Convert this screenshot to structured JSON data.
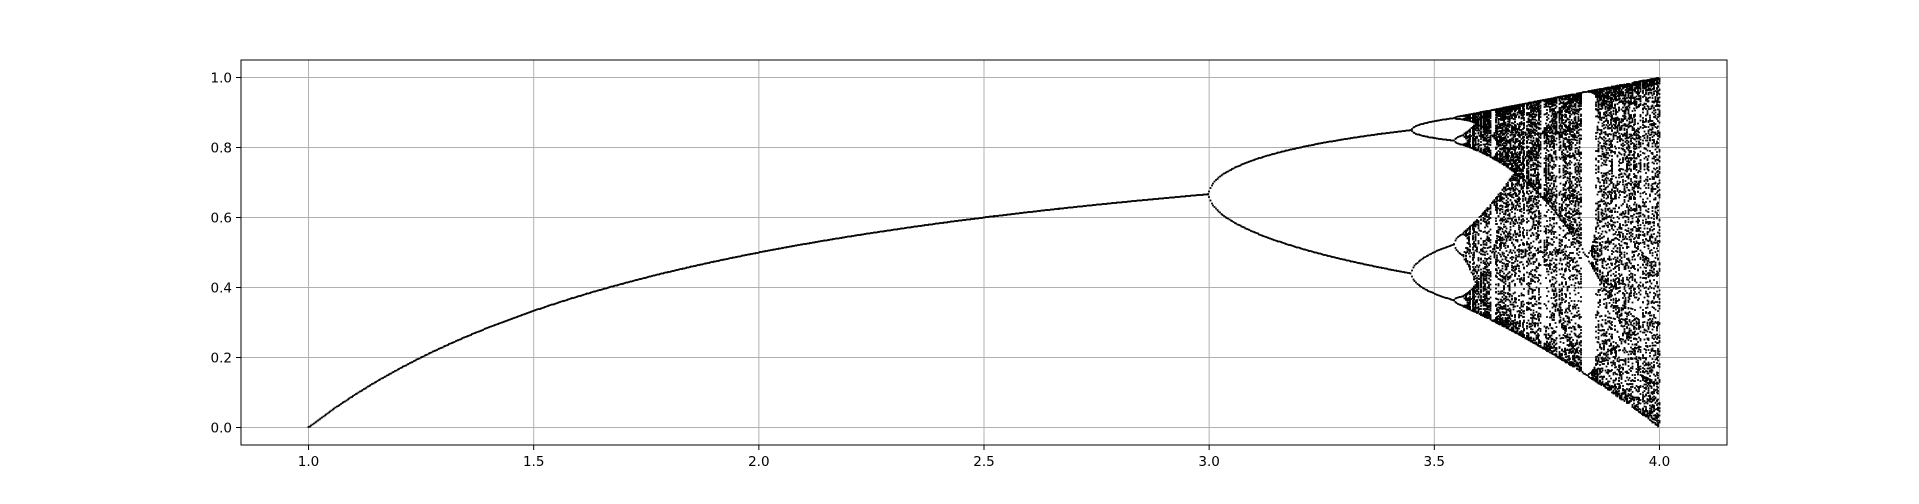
{
  "chart_data": {
    "type": "scatter",
    "title": "",
    "xlabel": "",
    "ylabel": "",
    "xlim": [
      0.85,
      4.15
    ],
    "ylim": [
      -0.05,
      1.05
    ],
    "grid": true,
    "x_ticks": [
      "1.0",
      "1.5",
      "2.0",
      "2.5",
      "3.0",
      "3.5",
      "4.0"
    ],
    "y_ticks": [
      "0.0",
      "0.2",
      "0.4",
      "0.6",
      "0.8",
      "1.0"
    ],
    "series": [
      {
        "generator": "logistic-map",
        "r_range": [
          1.0,
          4.0
        ],
        "r_steps": 1000,
        "x0": 0.01,
        "iterations": 1000,
        "plotted_last": 100,
        "marker_color": "#000000"
      }
    ]
  },
  "colors": {
    "grid": "#b0b0b0",
    "axes": "#000000",
    "points": "#000000",
    "background": "#ffffff"
  }
}
